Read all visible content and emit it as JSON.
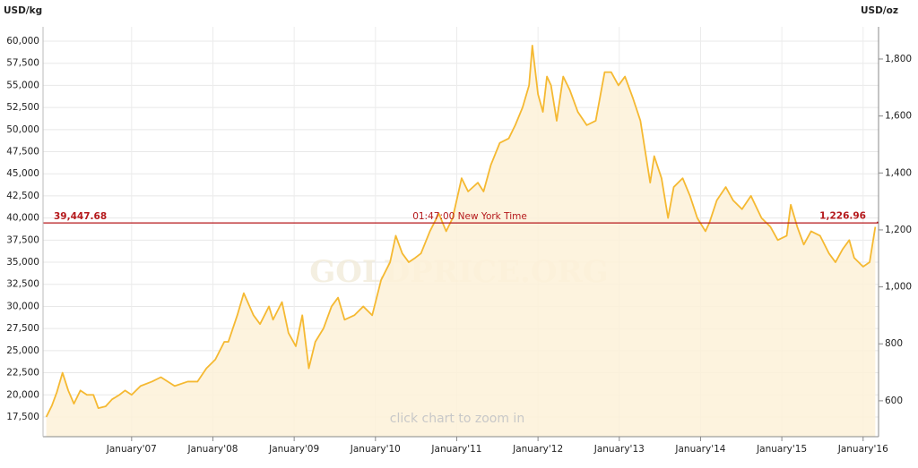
{
  "chart_data": {
    "type": "area",
    "y_label": "USD/kg",
    "y2_label": "USD/oz",
    "watermark": "GOLDPRICE.ORG",
    "note": "click chart to zoom in",
    "color": "#f5b932",
    "fill": "#fdf1d8",
    "grid": true,
    "x": [
      2005.95,
      2006.02,
      2006.08,
      2006.15,
      2006.22,
      2006.29,
      2006.37,
      2006.45,
      2006.53,
      2006.59,
      2006.68,
      2006.76,
      2006.85,
      2006.92,
      2007.0,
      2007.11,
      2007.25,
      2007.36,
      2007.53,
      2007.69,
      2007.81,
      2007.92,
      2008.03,
      2008.14,
      2008.19,
      2008.3,
      2008.38,
      2008.5,
      2008.58,
      2008.69,
      2008.74,
      2008.85,
      2008.93,
      2009.02,
      2009.1,
      2009.18,
      2009.26,
      2009.36,
      2009.46,
      2009.54,
      2009.62,
      2009.74,
      2009.85,
      2009.96,
      2010.07,
      2010.18,
      2010.25,
      2010.33,
      2010.41,
      2010.49,
      2010.56,
      2010.67,
      2010.78,
      2010.87,
      2010.95,
      2011.06,
      2011.14,
      2011.26,
      2011.33,
      2011.42,
      2011.53,
      2011.64,
      2011.72,
      2011.81,
      2011.89,
      2011.93,
      2012.0,
      2012.06,
      2012.11,
      2012.16,
      2012.23,
      2012.31,
      2012.39,
      2012.49,
      2012.6,
      2012.71,
      2012.82,
      2012.9,
      2012.99,
      2013.07,
      2013.17,
      2013.26,
      2013.38,
      2013.43,
      2013.52,
      2013.6,
      2013.67,
      2013.78,
      2013.87,
      2013.96,
      2014.06,
      2014.11,
      2014.2,
      2014.31,
      2014.4,
      2014.51,
      2014.62,
      2014.75,
      2014.86,
      2014.95,
      2015.06,
      2015.11,
      2015.19,
      2015.27,
      2015.36,
      2015.47,
      2015.58,
      2015.66,
      2015.75,
      2015.83,
      2015.89,
      2016.0,
      2016.08,
      2016.15
    ],
    "values": [
      17500,
      18800,
      20300,
      22500,
      20500,
      19000,
      20500,
      20000,
      20000,
      18500,
      18700,
      19500,
      20000,
      20500,
      20000,
      21000,
      21500,
      22000,
      21000,
      21500,
      21500,
      23000,
      24000,
      26000,
      26000,
      29000,
      31500,
      29000,
      28000,
      30000,
      28500,
      30500,
      27000,
      25500,
      29000,
      23000,
      26000,
      27500,
      30000,
      31000,
      28500,
      29000,
      30000,
      29000,
      33000,
      35000,
      38000,
      36000,
      35000,
      35500,
      36000,
      38500,
      40500,
      38500,
      40000,
      44500,
      43000,
      44000,
      43000,
      46000,
      48500,
      49000,
      50500,
      52500,
      55000,
      59500,
      54000,
      52000,
      56000,
      55000,
      51000,
      56000,
      54500,
      52000,
      50500,
      51000,
      56500,
      56500,
      55000,
      56000,
      53500,
      51000,
      44000,
      47000,
      44500,
      40000,
      43500,
      44500,
      42500,
      40000,
      38500,
      39500,
      42000,
      43500,
      42000,
      41000,
      42500,
      40000,
      39000,
      37500,
      38000,
      41500,
      39000,
      37000,
      38500,
      38000,
      36000,
      35000,
      36500,
      37500,
      35500,
      34500,
      35000,
      39000
    ],
    "xlim": [
      2005.91,
      2016.19
    ],
    "xticks": [
      {
        "value": 2007,
        "label": "January'07"
      },
      {
        "value": 2008,
        "label": "January'08"
      },
      {
        "value": 2009,
        "label": "January'09"
      },
      {
        "value": 2010,
        "label": "January'10"
      },
      {
        "value": 2011,
        "label": "January'11"
      },
      {
        "value": 2012,
        "label": "January'12"
      },
      {
        "value": 2013,
        "label": "January'13"
      },
      {
        "value": 2014,
        "label": "January'14"
      },
      {
        "value": 2015,
        "label": "January'15"
      },
      {
        "value": 2016,
        "label": "January'16"
      }
    ],
    "ylim": [
      15270,
      61620
    ],
    "yticks": [
      {
        "value": 17500,
        "label": "17,500"
      },
      {
        "value": 20000,
        "label": "20,000"
      },
      {
        "value": 22500,
        "label": "22,500"
      },
      {
        "value": 25000,
        "label": "25,000"
      },
      {
        "value": 27500,
        "label": "27,500"
      },
      {
        "value": 30000,
        "label": "30,000"
      },
      {
        "value": 32500,
        "label": "32,500"
      },
      {
        "value": 35000,
        "label": "35,000"
      },
      {
        "value": 37500,
        "label": "37,500"
      },
      {
        "value": 40000,
        "label": "40,000"
      },
      {
        "value": 42500,
        "label": "42,500"
      },
      {
        "value": 45000,
        "label": "45,000"
      },
      {
        "value": 47500,
        "label": "47,500"
      },
      {
        "value": 50000,
        "label": "50,000"
      },
      {
        "value": 52500,
        "label": "52,500"
      },
      {
        "value": 55000,
        "label": "55,000"
      },
      {
        "value": 57500,
        "label": "57,500"
      },
      {
        "value": 60000,
        "label": "60,000"
      }
    ],
    "y2lim": [
      474,
      1913
    ],
    "y2ticks": [
      600,
      800,
      {
        "value": 1000,
        "label": "1,000"
      },
      {
        "value": 1200,
        "label": "1,200"
      },
      {
        "value": 1400,
        "label": "1,400"
      },
      {
        "value": 1600,
        "label": "1,600"
      },
      {
        "value": 1800,
        "label": "1,800"
      }
    ],
    "reference_line": {
      "color": "#b5191c",
      "text": "01:47:00 New York Time",
      "y": {
        "value": 39447.68,
        "label": "39,447.68"
      },
      "y2": {
        "value": 1226.96,
        "label": "1,226.96"
      }
    }
  }
}
